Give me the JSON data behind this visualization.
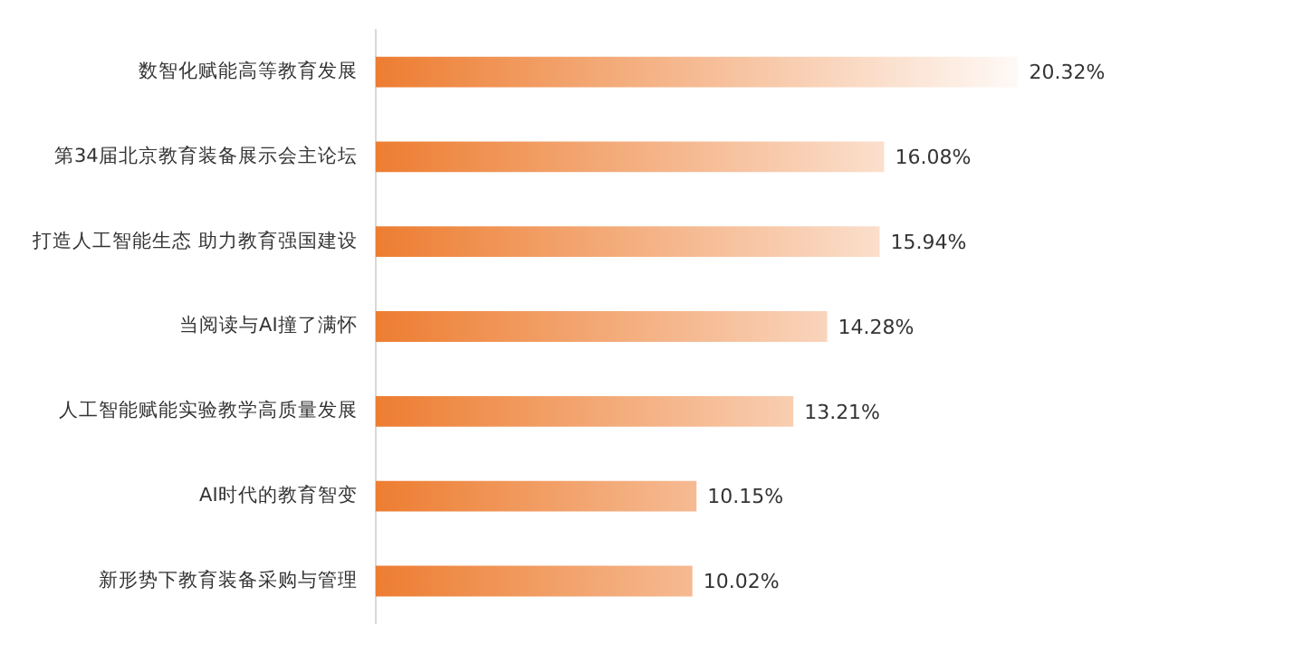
{
  "chart_data": {
    "type": "bar",
    "orientation": "horizontal",
    "categories": [
      "数智化赋能高等教育发展",
      "第34届北京教育装备展示会主论坛",
      "打造人工智能生态 助力教育强国建设",
      "当阅读与AI撞了满怀",
      "人工智能赋能实验教学高质量发展",
      "AI时代的教育智变",
      "新形势下教育装备采购与管理"
    ],
    "values": [
      20.32,
      16.08,
      15.94,
      14.28,
      13.21,
      10.15,
      10.02
    ],
    "value_labels": [
      "20.32%",
      "16.08%",
      "15.94%",
      "14.28%",
      "13.21%",
      "10.15%",
      "10.02%"
    ],
    "color": "#ed7d31",
    "tick_labels": "y",
    "legend": false
  }
}
